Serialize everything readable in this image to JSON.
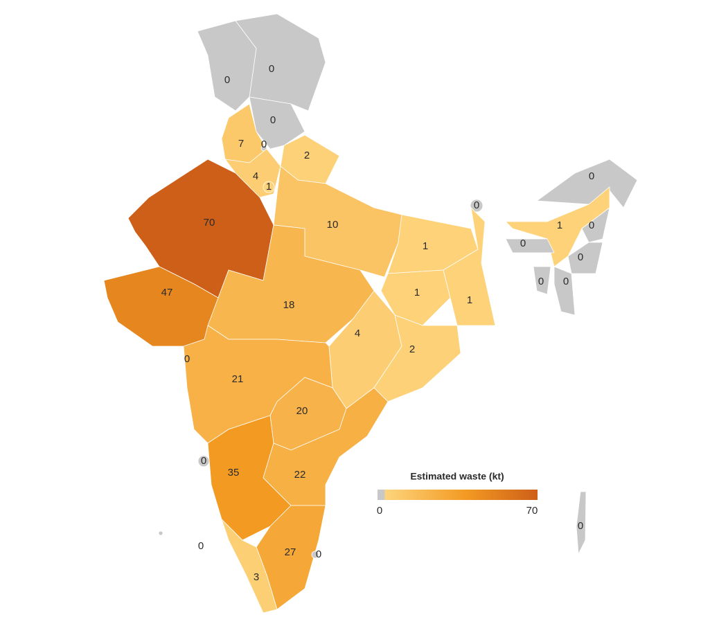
{
  "legend": {
    "title": "Estimated waste (kt)",
    "ticks": [
      0,
      70
    ],
    "colors": [
      "#c8c8c8",
      "#fdd47c",
      "#f39a23",
      "#cd5f18"
    ]
  },
  "regions": [
    0,
    0,
    0,
    7,
    0,
    2,
    4,
    1,
    70,
    10,
    1,
    0,
    0,
    1,
    0,
    0,
    0,
    0,
    0,
    1,
    1,
    47,
    18,
    4,
    2,
    0,
    21,
    20,
    0,
    35,
    22,
    0,
    27,
    0,
    3,
    0
  ]
}
